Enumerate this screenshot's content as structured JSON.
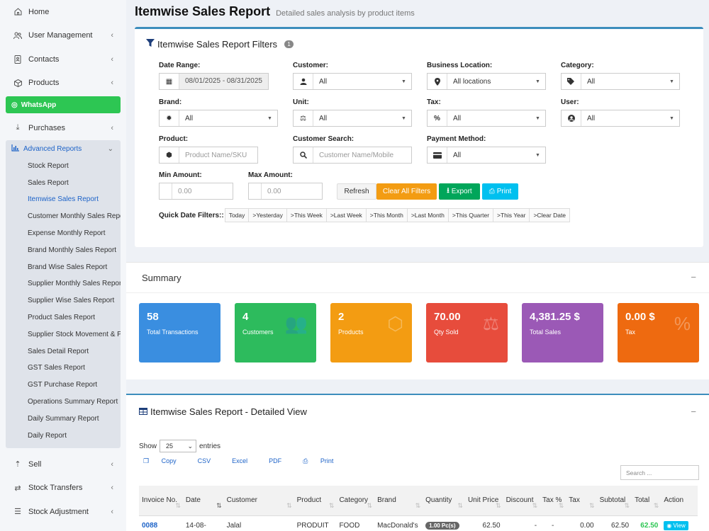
{
  "sidebar": {
    "items_top": [
      {
        "label": "Home",
        "icon": "home-icon",
        "chevron": false
      },
      {
        "label": "User Management",
        "icon": "users-icon",
        "chevron": true
      },
      {
        "label": "Contacts",
        "icon": "contacts-icon",
        "chevron": true
      },
      {
        "label": "Products",
        "icon": "box-icon",
        "chevron": true
      }
    ],
    "whatsapp": "WhatsApp",
    "purchases": "Purchases",
    "advanced": {
      "label": "Advanced Reports",
      "children": [
        "Stock Report",
        "Sales Report",
        "Itemwise Sales Report",
        "Customer Monthly Sales Report",
        "Expense Monthly Report",
        "Brand Monthly Sales Report",
        "Brand Wise Sales Report",
        "Supplier Monthly Sales Report",
        "Supplier Wise Sales Report",
        "Product Sales Report",
        "Supplier Stock Movement & Pr",
        "Sales Detail Report",
        "GST Sales Report",
        "GST Purchase Report",
        "Operations Summary Report",
        "Daily Summary Report",
        "Daily Report"
      ]
    },
    "items_bottom": [
      {
        "label": "Sell"
      },
      {
        "label": "Stock Transfers"
      },
      {
        "label": "Stock Adjustment"
      }
    ]
  },
  "page": {
    "title": "Itemwise Sales Report",
    "subtitle": "Detailed sales analysis by product items"
  },
  "filters": {
    "title": "Itemwise Sales Report Filters",
    "count": "1",
    "date_range_label": "Date Range:",
    "date_range_value": "08/01/2025 - 08/31/2025",
    "customer_label": "Customer:",
    "customer_value": "All",
    "location_label": "Business Location:",
    "location_value": "All locations",
    "category_label": "Category:",
    "category_value": "All",
    "brand_label": "Brand:",
    "brand_value": "All",
    "unit_label": "Unit:",
    "unit_value": "All",
    "tax_label": "Tax:",
    "tax_value": "All",
    "user_label": "User:",
    "user_value": "All",
    "product_label": "Product:",
    "product_placeholder": "Product Name/SKU",
    "customer_search_label": "Customer Search:",
    "customer_search_placeholder": "Customer Name/Mobile",
    "payment_label": "Payment Method:",
    "payment_value": "All",
    "min_label": "Min Amount:",
    "min_value": "0.00",
    "max_label": "Max Amount:",
    "max_value": "0.00",
    "refresh": "Refresh",
    "clear": "Clear All Filters",
    "export": "Export",
    "print": "Print",
    "quick_label": "Quick Date Filters::",
    "quick": [
      "Today",
      ">Yesterday",
      ">This Week",
      ">Last Week",
      ">This Month",
      ">Last Month",
      ">This Quarter",
      ">This Year",
      ">Clear Date"
    ]
  },
  "summary": {
    "title": "Summary",
    "collapse": "−",
    "tiles": [
      {
        "value": "58",
        "label": "Total Transactions",
        "color": "#3a8ee0",
        "icon": ""
      },
      {
        "value": "4",
        "label": "Customers",
        "color": "#2dbb5d",
        "icon": "👥"
      },
      {
        "value": "2",
        "label": "Products",
        "color": "#f39c12",
        "icon": "⬡"
      },
      {
        "value": "70.00",
        "label": "Qty Sold",
        "color": "#e74c3c",
        "icon": "⚖"
      },
      {
        "value": "4,381.25 $",
        "label": "Total Sales",
        "color": "#9b59b6",
        "icon": ""
      },
      {
        "value": "0.00 $",
        "label": "Tax",
        "color": "#ee6a10",
        "icon": "%"
      }
    ]
  },
  "detail": {
    "title": "Itemwise Sales Report - Detailed View",
    "collapse": "−",
    "show": "Show",
    "entries_value": "25",
    "entries": "entries",
    "export_buttons": [
      "Copy",
      "CSV",
      "Excel",
      "PDF",
      "Print"
    ],
    "search_placeholder": "Search ...",
    "columns": [
      "Invoice No.",
      "Date",
      "Customer",
      "Product",
      "Category",
      "Brand",
      "Quantity",
      "Unit Price",
      "Discount",
      "Tax %",
      "Tax",
      "Subtotal",
      "Total",
      "Action"
    ],
    "rows": [
      {
        "invoice": "0088",
        "date": "14-08-",
        "customer": "Jalal",
        "product": "PRODUIT",
        "category": "FOOD",
        "brand": "MacDonald's",
        "quantity": "1.00 Pc(s)",
        "unit_price": "62.50",
        "discount": "-",
        "tax_pct": "-",
        "tax": "0.00",
        "subtotal": "62.50",
        "total": "62.50",
        "action": "View"
      }
    ]
  }
}
